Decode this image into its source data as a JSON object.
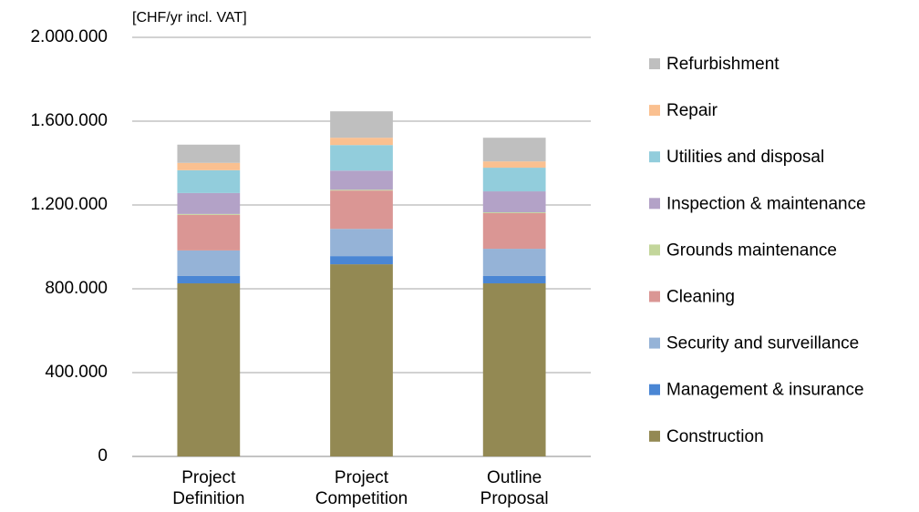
{
  "chart_data": {
    "type": "stacked_bar",
    "y_axis_label": "[CHF/yr incl. VAT]",
    "categories": [
      "Project Definition",
      "Project Competition",
      "Outline Proposal"
    ],
    "series": [
      {
        "name": "Construction",
        "color": "#938953",
        "values": [
          826000,
          917000,
          826000
        ]
      },
      {
        "name": "Management & insurance",
        "color": "#4a86d4",
        "values": [
          35000,
          39000,
          35000
        ]
      },
      {
        "name": "Security and surveillance",
        "color": "#95b3d7",
        "values": [
          122000,
          130000,
          130000
        ]
      },
      {
        "name": "Cleaning",
        "color": "#da9694",
        "values": [
          170000,
          183000,
          170000
        ]
      },
      {
        "name": "Grounds maintenance",
        "color": "#c3d69b",
        "values": [
          4000,
          4000,
          4000
        ]
      },
      {
        "name": "Inspection & maintenance",
        "color": "#b3a2c7",
        "values": [
          100000,
          91000,
          100000
        ]
      },
      {
        "name": "Utilities and disposal",
        "color": "#92cddc",
        "values": [
          109000,
          122000,
          113000
        ]
      },
      {
        "name": "Repair",
        "color": "#fac090",
        "values": [
          35000,
          35000,
          30000
        ]
      },
      {
        "name": "Refurbishment",
        "color": "#bfbfbf",
        "values": [
          87000,
          126000,
          113000
        ]
      }
    ],
    "ylim": [
      0,
      2000000
    ],
    "yticks": [
      0,
      {
        "value": 400000,
        "label": "400.000"
      },
      {
        "value": 800000,
        "label": "800.000"
      },
      {
        "value": 1200000,
        "label": "1.200.000"
      },
      {
        "value": 1600000,
        "label": "1.600.000"
      },
      {
        "value": 2000000,
        "label": "2.000.000"
      }
    ],
    "grid": true,
    "legend": "right"
  }
}
